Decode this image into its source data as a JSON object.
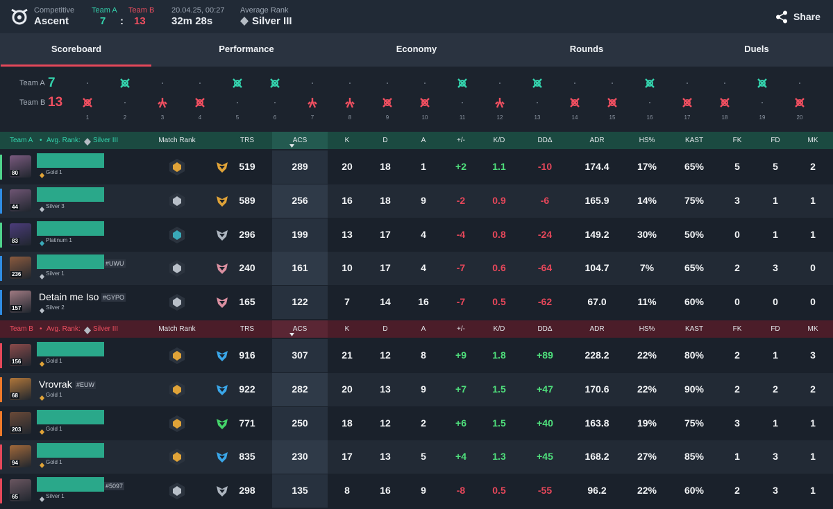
{
  "header": {
    "mode": "Competitive",
    "map": "Ascent",
    "team_a": "Team A",
    "team_b": "Team B",
    "score_a": "7",
    "score_separator": ":",
    "score_b": "13",
    "date": "20.04.25, 00:27",
    "duration": "32m 28s",
    "avg_rank_label": "Average Rank",
    "avg_rank": "Silver III",
    "share": "Share"
  },
  "tabs": [
    "Scoreboard",
    "Performance",
    "Economy",
    "Rounds",
    "Duels"
  ],
  "rounds": {
    "team_a": "Team A",
    "score_a": "7",
    "team_b": "Team B",
    "score_b": "13",
    "list": [
      {
        "number": "1",
        "winner": "B",
        "end": "elimination"
      },
      {
        "number": "2",
        "winner": "A",
        "end": "elimination"
      },
      {
        "number": "3",
        "winner": "B",
        "end": "spike"
      },
      {
        "number": "4",
        "winner": "B",
        "end": "elimination"
      },
      {
        "number": "5",
        "winner": "A",
        "end": "elimination"
      },
      {
        "number": "6",
        "winner": "A",
        "end": "elimination"
      },
      {
        "number": "7",
        "winner": "B",
        "end": "spike"
      },
      {
        "number": "8",
        "winner": "B",
        "end": "spike"
      },
      {
        "number": "9",
        "winner": "B",
        "end": "elimination"
      },
      {
        "number": "10",
        "winner": "B",
        "end": "elimination"
      },
      {
        "number": "11",
        "winner": "A",
        "end": "elimination"
      },
      {
        "number": "12",
        "winner": "B",
        "end": "spike"
      },
      {
        "number": "13",
        "winner": "A",
        "end": "elimination"
      },
      {
        "number": "14",
        "winner": "B",
        "end": "elimination"
      },
      {
        "number": "15",
        "winner": "B",
        "end": "elimination"
      },
      {
        "number": "16",
        "winner": "A",
        "end": "elimination"
      },
      {
        "number": "17",
        "winner": "B",
        "end": "elimination"
      },
      {
        "number": "18",
        "winner": "B",
        "end": "elimination"
      },
      {
        "number": "19",
        "winner": "A",
        "end": "elimination"
      },
      {
        "number": "20",
        "winner": "B",
        "end": "elimination"
      }
    ]
  },
  "columns": [
    "Match Rank",
    "TRS",
    "ACS",
    "K",
    "D",
    "A",
    "+/-",
    "K/D",
    "DDΔ",
    "ADR",
    "HS%",
    "KAST",
    "FK",
    "FD",
    "MK"
  ],
  "teams": [
    {
      "name": "Team A",
      "bullet": "•",
      "avg_rank_label": "Avg. Rank:",
      "avg_rank": "Silver III",
      "players": [
        {
          "level": "80",
          "rank": "Gold 1",
          "stats": [
            "519",
            "289",
            "20",
            "18",
            "1",
            "+2",
            "1.1",
            "-10",
            "174.4",
            "17%",
            "65%",
            "5",
            "5",
            "2"
          ]
        },
        {
          "level": "44",
          "rank": "Silver 3",
          "stats": [
            "589",
            "256",
            "16",
            "18",
            "9",
            "-2",
            "0.9",
            "-6",
            "165.9",
            "14%",
            "75%",
            "3",
            "1",
            "1"
          ]
        },
        {
          "level": "83",
          "rank": "Platinum 1",
          "stats": [
            "296",
            "199",
            "13",
            "17",
            "4",
            "-4",
            "0.8",
            "-24",
            "149.2",
            "30%",
            "50%",
            "0",
            "1",
            "1"
          ]
        },
        {
          "level": "236",
          "tag": "#UWU",
          "rank": "Silver 1",
          "stats": [
            "240",
            "161",
            "10",
            "17",
            "4",
            "-7",
            "0.6",
            "-64",
            "104.7",
            "7%",
            "65%",
            "2",
            "3",
            "0"
          ]
        },
        {
          "level": "157",
          "name": "Detain me Iso",
          "tag": "#GYPO",
          "rank": "Silver 2",
          "stats": [
            "165",
            "122",
            "7",
            "14",
            "16",
            "-7",
            "0.5",
            "-62",
            "67.0",
            "11%",
            "60%",
            "0",
            "0",
            "0"
          ]
        }
      ]
    },
    {
      "name": "Team B",
      "bullet": "•",
      "avg_rank_label": "Avg. Rank:",
      "avg_rank": "Silver III",
      "players": [
        {
          "level": "156",
          "rank": "Gold 1",
          "stats": [
            "916",
            "307",
            "21",
            "12",
            "8",
            "+9",
            "1.8",
            "+89",
            "228.2",
            "22%",
            "80%",
            "2",
            "1",
            "3"
          ]
        },
        {
          "level": "68",
          "name": "Vrovrak",
          "tag": "#EUW",
          "rank": "Gold 1",
          "stats": [
            "922",
            "282",
            "20",
            "13",
            "9",
            "+7",
            "1.5",
            "+47",
            "170.6",
            "22%",
            "90%",
            "2",
            "2",
            "2"
          ]
        },
        {
          "level": "203",
          "rank": "Gold 1",
          "stats": [
            "771",
            "250",
            "18",
            "12",
            "2",
            "+6",
            "1.5",
            "+40",
            "163.8",
            "19%",
            "75%",
            "3",
            "1",
            "1"
          ]
        },
        {
          "level": "94",
          "rank": "Gold 1",
          "stats": [
            "835",
            "230",
            "17",
            "13",
            "5",
            "+4",
            "1.3",
            "+45",
            "168.2",
            "27%",
            "85%",
            "1",
            "3",
            "1"
          ]
        },
        {
          "level": "65",
          "tag": "#5097",
          "rank": "Silver 1",
          "stats": [
            "298",
            "135",
            "8",
            "16",
            "9",
            "-8",
            "0.5",
            "-55",
            "96.2",
            "22%",
            "60%",
            "2",
            "3",
            "1"
          ]
        }
      ]
    }
  ]
}
